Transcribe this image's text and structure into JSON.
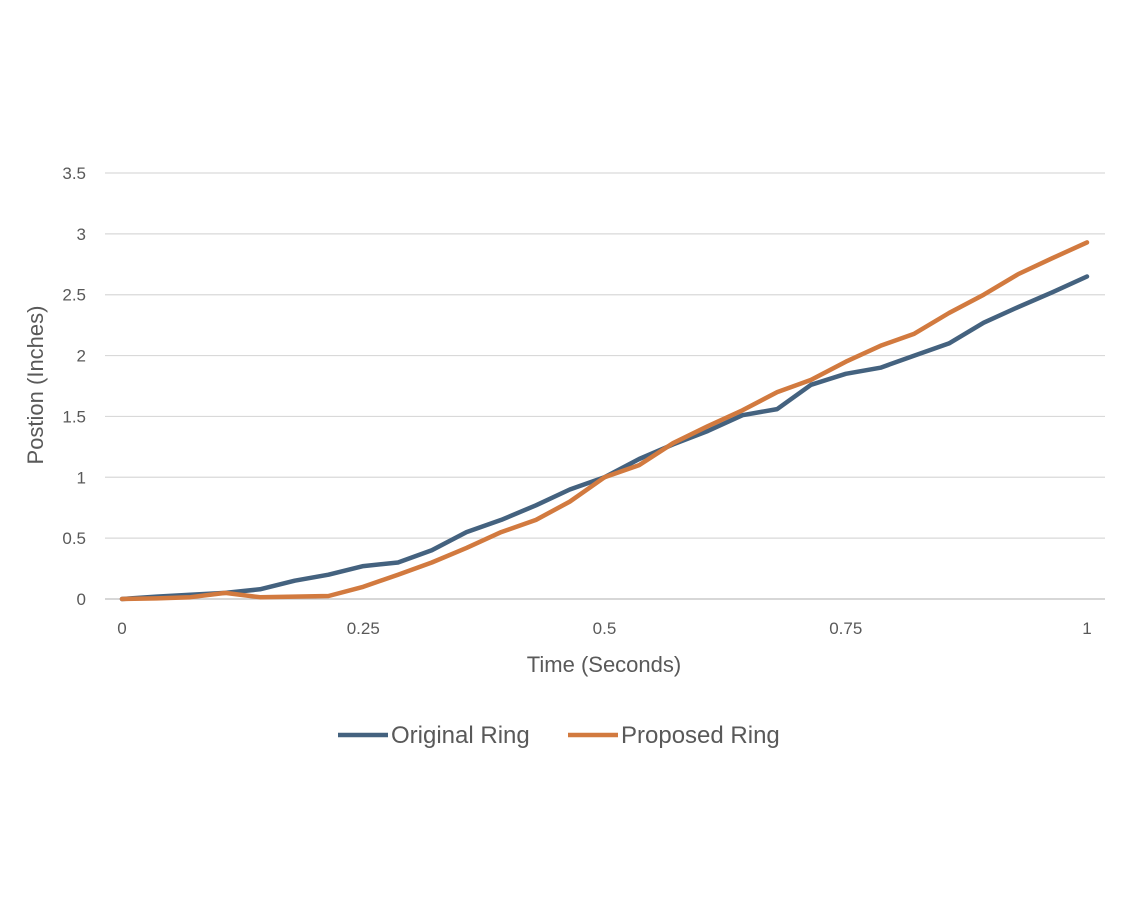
{
  "chart_data": {
    "type": "line",
    "title": "",
    "xlabel": "Time (Seconds)",
    "ylabel": "Postion (Inches)",
    "xlim": [
      0,
      1
    ],
    "ylim": [
      0,
      3.5
    ],
    "xticks": [
      "0",
      "0.25",
      "0.5",
      "0.75",
      "1"
    ],
    "yticks": [
      "0",
      "0.5",
      "1",
      "1.5",
      "2",
      "2.5",
      "3",
      "3.5"
    ],
    "grid": "horizontal",
    "legend_position": "bottom",
    "series": [
      {
        "name": "Original Ring",
        "color": "#44627f",
        "x": [
          0,
          0.036,
          0.071,
          0.107,
          0.143,
          0.179,
          0.214,
          0.25,
          0.286,
          0.321,
          0.357,
          0.393,
          0.429,
          0.464,
          0.5,
          0.536,
          0.571,
          0.607,
          0.643,
          0.679,
          0.714,
          0.75,
          0.786,
          0.821,
          0.857,
          0.893,
          0.929,
          0.964,
          1
        ],
        "y": [
          0,
          0.02,
          0.035,
          0.05,
          0.08,
          0.15,
          0.2,
          0.27,
          0.3,
          0.4,
          0.55,
          0.65,
          0.77,
          0.9,
          1.0,
          1.15,
          1.27,
          1.38,
          1.51,
          1.56,
          1.76,
          1.85,
          1.9,
          2.0,
          2.1,
          2.27,
          2.4,
          2.52,
          2.65
        ]
      },
      {
        "name": "Proposed Ring",
        "color": "#d27a3f",
        "x": [
          0,
          0.036,
          0.071,
          0.107,
          0.143,
          0.179,
          0.214,
          0.25,
          0.286,
          0.321,
          0.357,
          0.393,
          0.429,
          0.464,
          0.5,
          0.536,
          0.571,
          0.607,
          0.643,
          0.679,
          0.714,
          0.75,
          0.786,
          0.821,
          0.857,
          0.893,
          0.929,
          0.964,
          1
        ],
        "y": [
          0,
          0.005,
          0.015,
          0.05,
          0.015,
          0.02,
          0.025,
          0.1,
          0.2,
          0.3,
          0.42,
          0.55,
          0.65,
          0.8,
          1.0,
          1.1,
          1.28,
          1.42,
          1.55,
          1.7,
          1.8,
          1.95,
          2.08,
          2.18,
          2.35,
          2.5,
          2.67,
          2.8,
          2.93
        ]
      }
    ]
  }
}
